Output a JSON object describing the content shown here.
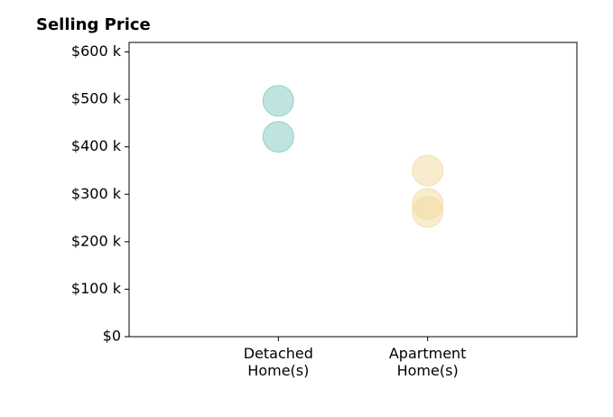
{
  "chart_data": {
    "type": "scatter",
    "title": "Selling Price",
    "xlim": [
      0,
      3
    ],
    "xticks": [
      {
        "value": 1,
        "label": "Detached\nHome(s)"
      },
      {
        "value": 2,
        "label": "Apartment\nHome(s)"
      }
    ],
    "ylim": [
      0,
      620
    ],
    "yticks": [
      {
        "value": 0,
        "label": "$0"
      },
      {
        "value": 100,
        "label": "$100 k"
      },
      {
        "value": 200,
        "label": "$200 k"
      },
      {
        "value": 300,
        "label": "$300 k"
      },
      {
        "value": 400,
        "label": "$400 k"
      },
      {
        "value": 500,
        "label": "$500 k"
      },
      {
        "value": 600,
        "label": "$600 k"
      }
    ],
    "opacity": 0.5,
    "series": [
      {
        "color": "#7fc9bf",
        "x": [
          1,
          1
        ],
        "values": [
          497,
          421
        ]
      },
      {
        "color": "#f2d9a0",
        "x": [
          2,
          2,
          2
        ],
        "values": [
          350,
          280,
          263
        ]
      }
    ]
  }
}
